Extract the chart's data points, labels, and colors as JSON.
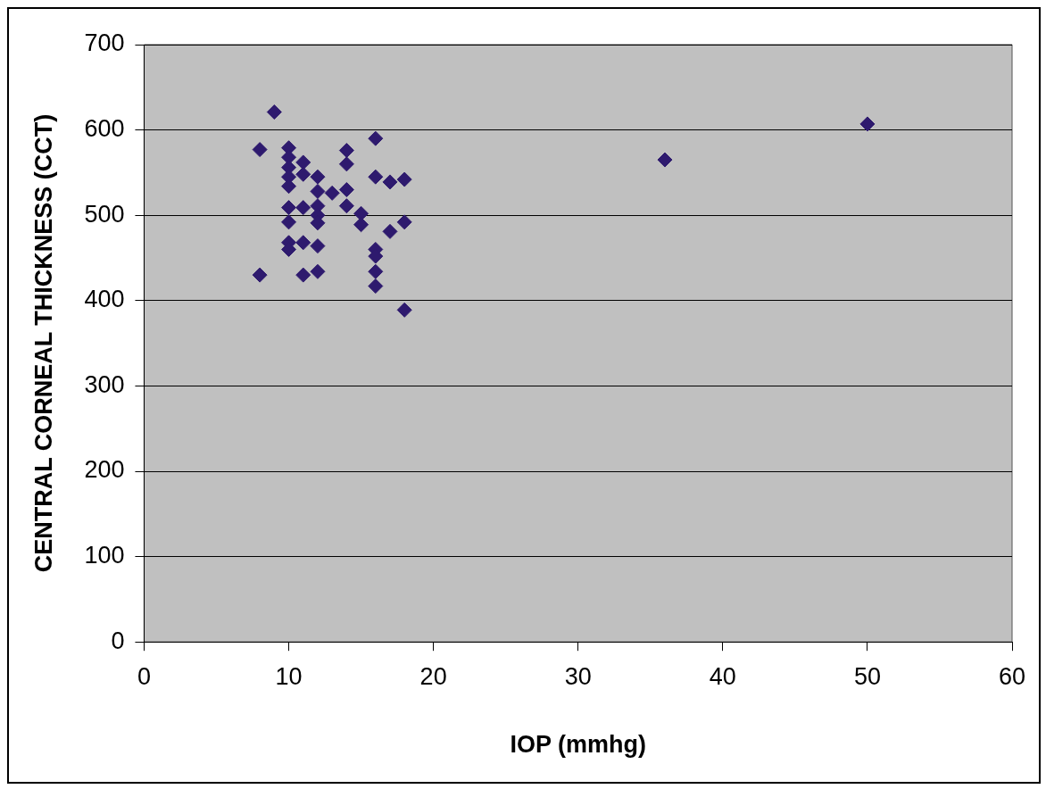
{
  "chart_data": {
    "type": "scatter",
    "xlabel": "IOP (mmhg)",
    "ylabel": "CENTRAL CORNEAL THICKNESS (CCT)",
    "marker": "diamond",
    "grid": "y",
    "legend": false,
    "xlim": [
      0,
      60
    ],
    "xticks": [
      0,
      10,
      20,
      30,
      40,
      50,
      60
    ],
    "ylim": [
      0,
      700
    ],
    "yticks": [
      0,
      100,
      200,
      300,
      400,
      500,
      600,
      700
    ],
    "series": [
      {
        "color": "#2e1a6e",
        "x": [
          8,
          8,
          9,
          10,
          10,
          10,
          10,
          10,
          10,
          10,
          10,
          10,
          11,
          11,
          11,
          11,
          11,
          12,
          12,
          12,
          12,
          12,
          12,
          12,
          13,
          14,
          14,
          14,
          14,
          15,
          15,
          16,
          16,
          16,
          16,
          16,
          16,
          17,
          17,
          18,
          18,
          18,
          36,
          50
        ],
        "values": [
          577,
          430,
          621,
          579,
          568,
          556,
          545,
          534,
          509,
          492,
          468,
          460,
          562,
          548,
          509,
          468,
          430,
          545,
          528,
          511,
          500,
          491,
          464,
          434,
          526,
          576,
          560,
          530,
          511,
          502,
          489,
          590,
          545,
          460,
          452,
          434,
          417,
          539,
          481,
          542,
          492,
          389,
          565,
          607
        ]
      }
    ]
  }
}
